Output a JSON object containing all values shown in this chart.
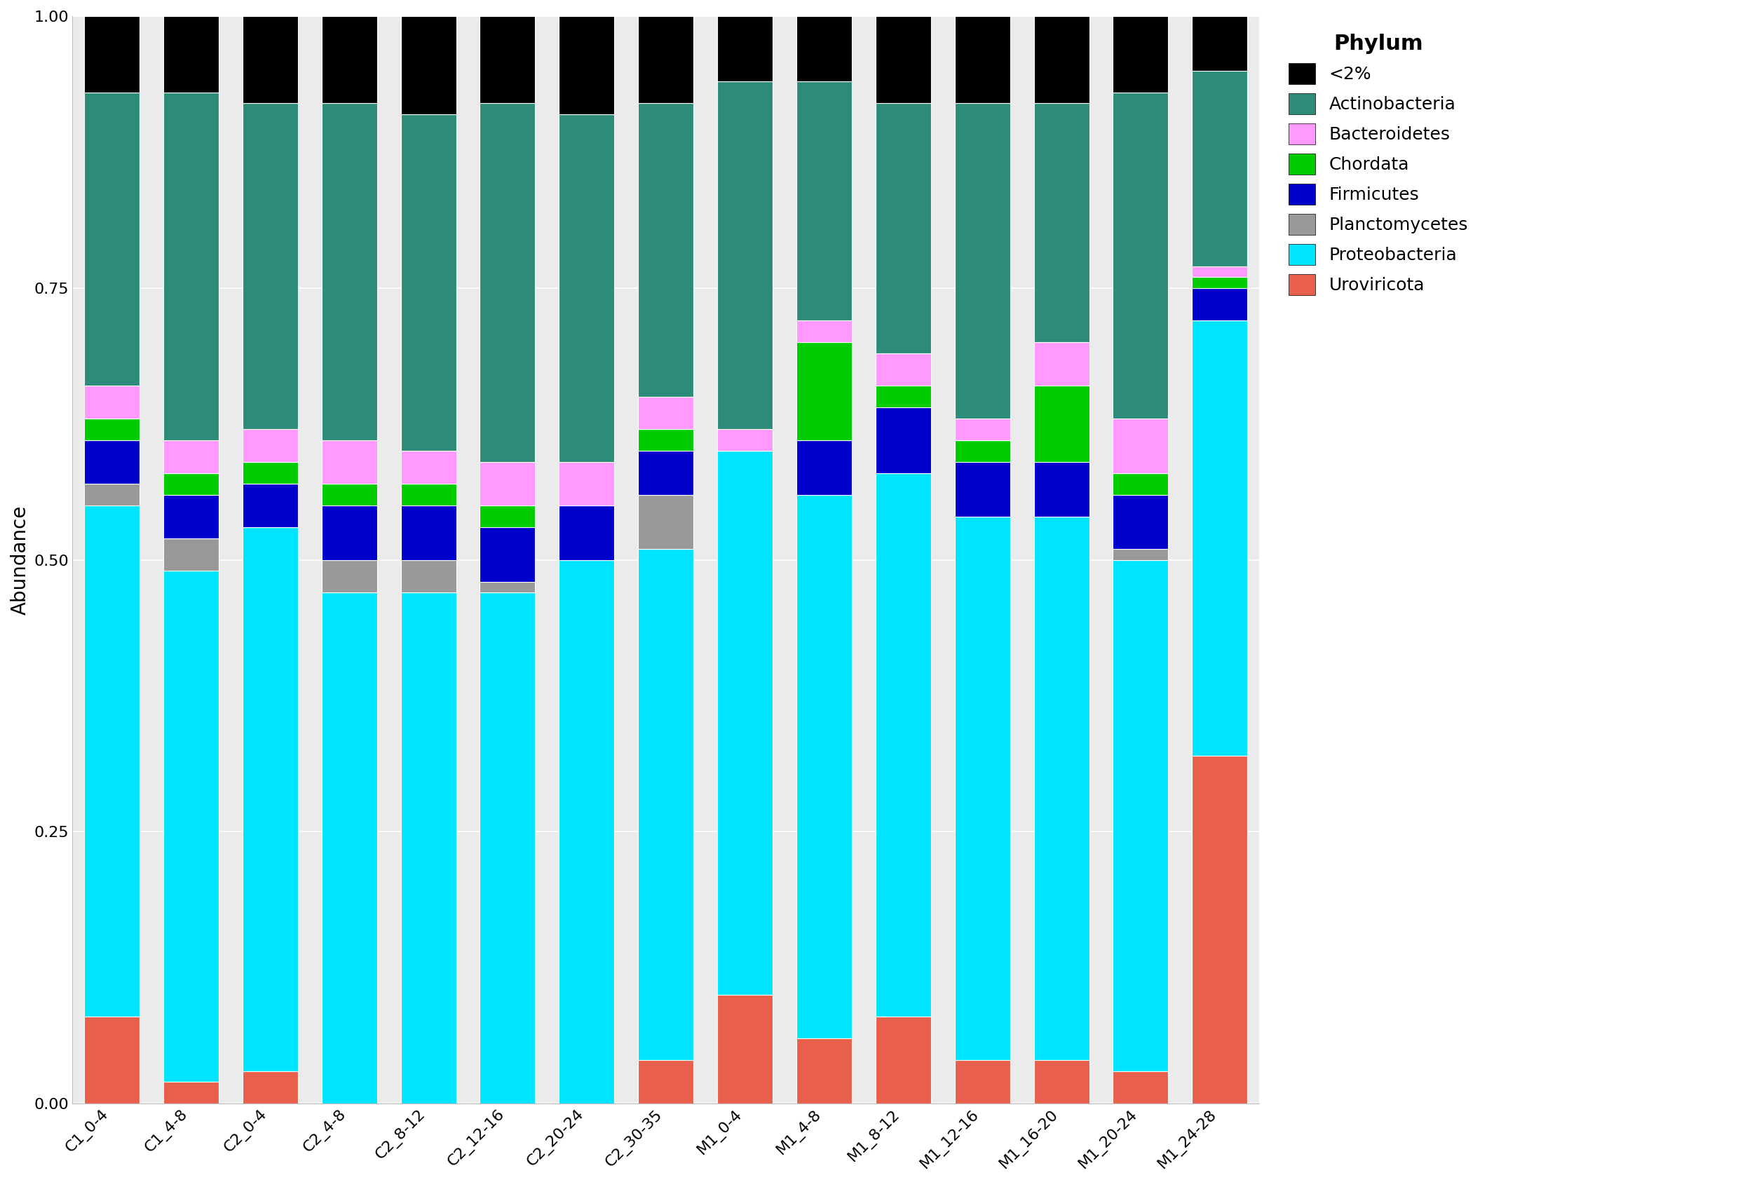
{
  "categories": [
    "C1_0-4",
    "C1_4-8",
    "C2_0-4",
    "C2_4-8",
    "C2_8-12",
    "C2_12-16",
    "C2_20-24",
    "C2_30-35",
    "M1_0-4",
    "M1_4-8",
    "M1_8-12",
    "M1_12-16",
    "M1_16-20",
    "M1_20-24",
    "M1_24-28"
  ],
  "phyla_order": [
    "Uroviricota",
    "Proteobacteria",
    "Planctomycetes",
    "Firmicutes",
    "Chordata",
    "Bacteroidetes",
    "Actinobacteria",
    "<2%"
  ],
  "legend_order": [
    "<2%",
    "Actinobacteria",
    "Bacteroidetes",
    "Chordata",
    "Firmicutes",
    "Planctomycetes",
    "Proteobacteria",
    "Uroviricota"
  ],
  "colors": {
    "<2%": "#000000",
    "Actinobacteria": "#2d8b7a",
    "Bacteroidetes": "#ff99ff",
    "Chordata": "#00cc00",
    "Firmicutes": "#0000cc",
    "Planctomycetes": "#999999",
    "Proteobacteria": "#00e5ff",
    "Uroviricota": "#e8604c"
  },
  "data": {
    "Uroviricota": [
      0.08,
      0.02,
      0.03,
      0.0,
      0.0,
      0.0,
      0.0,
      0.04,
      0.1,
      0.06,
      0.08,
      0.04,
      0.04,
      0.03,
      0.32
    ],
    "Proteobacteria": [
      0.47,
      0.47,
      0.5,
      0.47,
      0.47,
      0.47,
      0.5,
      0.47,
      0.5,
      0.5,
      0.5,
      0.5,
      0.5,
      0.47,
      0.4
    ],
    "Planctomycetes": [
      0.02,
      0.03,
      0.0,
      0.03,
      0.03,
      0.01,
      0.0,
      0.05,
      0.0,
      0.0,
      0.0,
      0.0,
      0.0,
      0.01,
      0.0
    ],
    "Firmicutes": [
      0.04,
      0.04,
      0.04,
      0.05,
      0.05,
      0.05,
      0.05,
      0.04,
      0.0,
      0.05,
      0.06,
      0.05,
      0.05,
      0.05,
      0.03
    ],
    "Chordata": [
      0.02,
      0.02,
      0.02,
      0.02,
      0.02,
      0.02,
      0.0,
      0.02,
      0.0,
      0.09,
      0.02,
      0.02,
      0.07,
      0.02,
      0.01
    ],
    "Bacteroidetes": [
      0.03,
      0.03,
      0.03,
      0.04,
      0.03,
      0.04,
      0.04,
      0.03,
      0.02,
      0.02,
      0.03,
      0.02,
      0.04,
      0.05,
      0.01
    ],
    "Actinobacteria": [
      0.27,
      0.32,
      0.3,
      0.31,
      0.31,
      0.33,
      0.32,
      0.27,
      0.32,
      0.22,
      0.23,
      0.29,
      0.22,
      0.3,
      0.18
    ],
    "<2%": [
      0.07,
      0.07,
      0.08,
      0.08,
      0.09,
      0.08,
      0.09,
      0.08,
      0.06,
      0.06,
      0.08,
      0.08,
      0.08,
      0.07,
      0.05
    ]
  },
  "ylabel": "Abundance",
  "legend_title": "Phylum",
  "ylim": [
    0,
    1.0
  ],
  "yticks": [
    0.0,
    0.25,
    0.5,
    0.75,
    1.0
  ],
  "bar_width": 0.7,
  "plot_bg": "#ebebeb",
  "fig_bg": "#ffffff",
  "grid_color": "#ffffff",
  "axis_fontsize": 20,
  "tick_fontsize": 16,
  "legend_title_fontsize": 22,
  "legend_fontsize": 18
}
